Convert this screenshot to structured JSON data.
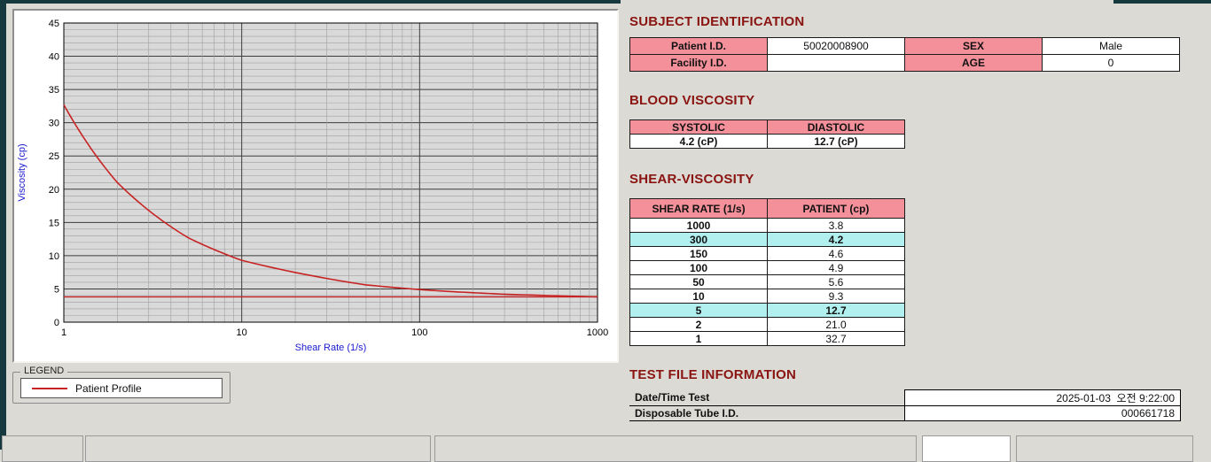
{
  "titles": {
    "subject": "SUBJECT IDENTIFICATION",
    "blood": "BLOOD VISCOSITY",
    "shear": "SHEAR-VISCOSITY",
    "testfile": "TEST FILE INFORMATION"
  },
  "subject_table": {
    "patient_id_label": "Patient I.D.",
    "patient_id": "50020008900",
    "sex_label": "SEX",
    "sex": "Male",
    "facility_id_label": "Facility I.D.",
    "facility_id": "",
    "age_label": "AGE",
    "age": "0"
  },
  "blood_viscosity": {
    "systolic_label": "SYSTOLIC",
    "diastolic_label": "DIASTOLIC",
    "systolic_value": "4.2 (cP)",
    "diastolic_value": "12.7 (cP)"
  },
  "shear_table": {
    "headers": [
      "SHEAR RATE (1/s)",
      "PATIENT (cp)"
    ],
    "rows": [
      {
        "rate": "1000",
        "value": "3.8",
        "highlight": false
      },
      {
        "rate": "300",
        "value": "4.2",
        "highlight": true
      },
      {
        "rate": "150",
        "value": "4.6",
        "highlight": false
      },
      {
        "rate": "100",
        "value": "4.9",
        "highlight": false
      },
      {
        "rate": "50",
        "value": "5.6",
        "highlight": false
      },
      {
        "rate": "10",
        "value": "9.3",
        "highlight": false
      },
      {
        "rate": "5",
        "value": "12.7",
        "highlight": true
      },
      {
        "rate": "2",
        "value": "21.0",
        "highlight": false
      },
      {
        "rate": "1",
        "value": "32.7",
        "highlight": false
      }
    ]
  },
  "test_file": {
    "rows": [
      {
        "label": "Date/Time Test",
        "value": "2025-01-03  오전 9:22:00"
      },
      {
        "label": "Disposable Tube I.D.",
        "value": "000661718"
      }
    ]
  },
  "legend": {
    "box_label": "LEGEND",
    "series_label": "Patient Profile"
  },
  "colors": {
    "header_pink": "#f4909a",
    "highlight_cyan": "#b2f0f0",
    "section_title_maroon": "#8a1411",
    "curve_red": "#c82323",
    "axis_label_blue": "#1a1acd"
  },
  "chart_data": {
    "type": "line",
    "title": "",
    "xlabel": "Shear Rate (1/s)",
    "ylabel": "Viscosity (cp)",
    "x_scale": "log",
    "xlim": [
      1,
      1000
    ],
    "ylim": [
      0,
      45
    ],
    "x_ticks": [
      1,
      10,
      100,
      1000
    ],
    "y_tick_step": 5,
    "grid": true,
    "legend_position": "below-left",
    "x": [
      1,
      2,
      5,
      10,
      50,
      100,
      150,
      300,
      1000
    ],
    "series": [
      {
        "name": "Patient Profile",
        "values": [
          32.7,
          21.0,
          12.7,
          9.3,
          5.6,
          4.9,
          4.6,
          4.2,
          3.8
        ],
        "color": "#c82323"
      },
      {
        "name": "baseline",
        "type": "hline",
        "y": 3.8,
        "color": "#c82323"
      }
    ],
    "colors": {
      "plot_bg": "#d9d9d9",
      "grid_minor": "#9f9f9f",
      "grid_major": "#3d3d3d",
      "frame": "#000000",
      "tick_text": "#000000",
      "axis_title": "#1a1acd"
    }
  }
}
